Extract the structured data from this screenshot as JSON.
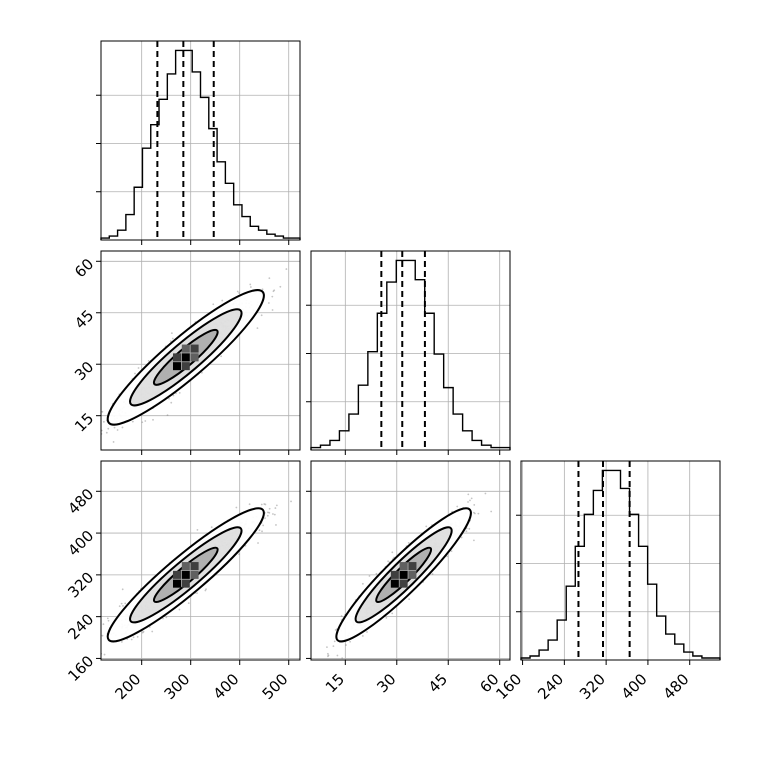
{
  "chart_data": {
    "type": "corner",
    "grid": true,
    "parameters": [
      {
        "key": "p0",
        "range": [
          117,
          523
        ],
        "ticks": [
          200,
          300,
          400,
          500
        ],
        "tick_labels": [
          "200",
          "300",
          "400",
          "500"
        ],
        "quantiles": [
          232,
          285,
          347
        ],
        "histogram": [
          1,
          2,
          5,
          13,
          27,
          47,
          59,
          72,
          85,
          97,
          97,
          86,
          73,
          57,
          40,
          29,
          18,
          12,
          7,
          5,
          3,
          2,
          1,
          1
        ]
      },
      {
        "key": "p1",
        "range": [
          5,
          63
        ],
        "ticks": [
          15,
          30,
          45,
          60
        ],
        "tick_labels": [
          "15",
          "30",
          "45",
          "60"
        ],
        "quantiles": [
          25.5,
          31.6,
          38.2
        ],
        "histogram": [
          1,
          2,
          4,
          8,
          15,
          27,
          41,
          57,
          70,
          79,
          79,
          71,
          57,
          40,
          26,
          15,
          8,
          4,
          2,
          1,
          1
        ]
      },
      {
        "key": "p2",
        "range": [
          157,
          538
        ],
        "ticks": [
          160,
          240,
          320,
          400,
          480
        ],
        "tick_labels": [
          "160",
          "240",
          "320",
          "400",
          "480"
        ],
        "quantiles": [
          267,
          314,
          365
        ],
        "histogram": [
          1,
          2,
          5,
          10,
          20,
          37,
          57,
          73,
          85,
          95,
          95,
          86,
          73,
          57,
          38,
          22,
          13,
          8,
          4,
          2,
          1,
          1
        ]
      }
    ],
    "panels": [
      {
        "row": 1,
        "col": 0,
        "x_param": "p0",
        "y_param": "p1",
        "mean": [
          290,
          32
        ],
        "sd": [
          65,
          8
        ],
        "corr": 0.92
      },
      {
        "row": 2,
        "col": 0,
        "x_param": "p0",
        "y_param": "p2",
        "mean": [
          290,
          320
        ],
        "sd": [
          65,
          52
        ],
        "corr": 0.93
      },
      {
        "row": 2,
        "col": 1,
        "x_param": "p1",
        "y_param": "p2",
        "mean": [
          32,
          320
        ],
        "sd": [
          8,
          52
        ],
        "corr": 0.93
      }
    ],
    "colors": {
      "line": "#000000",
      "scatter": "#7f7f7f",
      "grid": "#b0b0b0",
      "fill_dark": "#000000",
      "fill_mid": "#404040",
      "fill_light": "#b8b8b8"
    }
  }
}
